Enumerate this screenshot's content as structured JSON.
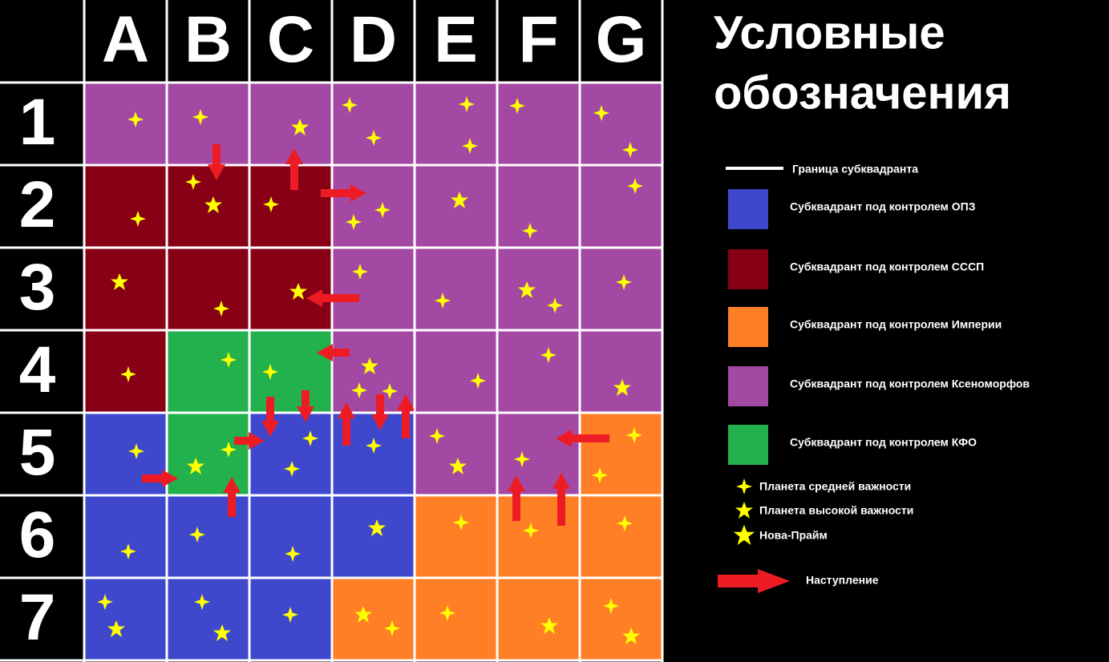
{
  "columns": [
    "A",
    "B",
    "C",
    "D",
    "E",
    "F",
    "G"
  ],
  "rows": [
    "1",
    "2",
    "3",
    "4",
    "5",
    "6",
    "7"
  ],
  "cells": [
    [
      3,
      3,
      3,
      3,
      3,
      3,
      3
    ],
    [
      1,
      1,
      1,
      3,
      3,
      3,
      3
    ],
    [
      1,
      1,
      1,
      3,
      3,
      3,
      3
    ],
    [
      1,
      4,
      4,
      3,
      3,
      3,
      3
    ],
    [
      0,
      4,
      0,
      0,
      3,
      3,
      2
    ],
    [
      0,
      0,
      0,
      0,
      2,
      2,
      2
    ],
    [
      0,
      0,
      0,
      2,
      2,
      2,
      2
    ]
  ],
  "legend": {
    "title_line1": "Условные",
    "title_line2": "обозначения",
    "border": "Граница субквадранта",
    "factions": [
      {
        "label": "Субквадрант под контролем ОПЗ",
        "color": "#3f48cc"
      },
      {
        "label": "Субквадрант под контролем СССП",
        "color": "#880015"
      },
      {
        "label": "Субквадрант под контролем Империи",
        "color": "#ff7f27"
      },
      {
        "label": "Субквадрант под контролем Ксеноморфов",
        "color": "#a349a4"
      },
      {
        "label": "Субквадрант под контролем КФО",
        "color": "#22b14c"
      }
    ],
    "planet_medium": "Планета средней важности",
    "planet_high": "Планета высокой важности",
    "nova_prime": "Нова-Прайм",
    "advance": "Наступление"
  }
}
